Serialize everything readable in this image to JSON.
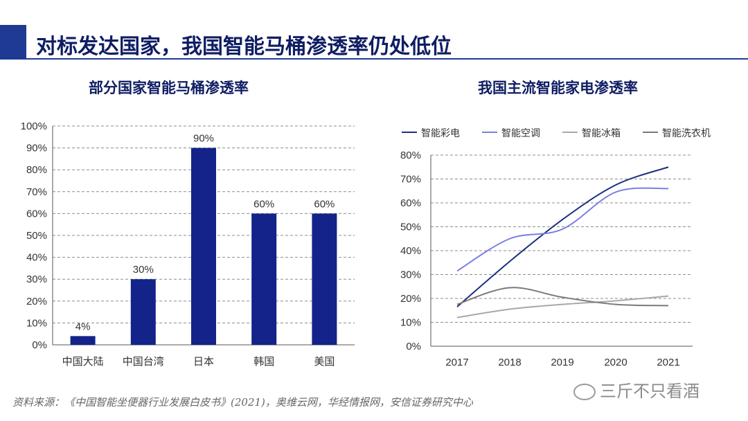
{
  "page": {
    "title": "对标发达国家，我国智能马桶渗透率仍处低位",
    "source": "资料来源：《中国智能坐便器行业发展白皮书》(2021)，奥维云网，华经情报网，安信证券研究中心",
    "watermark": "三斤不只看酒",
    "accent_color": "#1f3a93"
  },
  "chart_data": [
    {
      "type": "bar",
      "title": "部分国家智能马桶渗透率",
      "categories": [
        "中国大陆",
        "中国台湾",
        "日本",
        "韩国",
        "美国"
      ],
      "values": [
        4,
        30,
        90,
        60,
        60
      ],
      "data_labels": [
        "4%",
        "30%",
        "90%",
        "60%",
        "60%"
      ],
      "ylim": [
        0,
        100
      ],
      "yticks": [
        "0%",
        "10%",
        "20%",
        "30%",
        "40%",
        "50%",
        "60%",
        "70%",
        "80%",
        "90%",
        "100%"
      ],
      "grid": true,
      "color": "#13238a"
    },
    {
      "type": "line",
      "title": "我国主流智能家电渗透率",
      "x": [
        "2017",
        "2018",
        "2019",
        "2020",
        "2021"
      ],
      "ylim": [
        0,
        80
      ],
      "yticks": [
        "0%",
        "10%",
        "20%",
        "30%",
        "40%",
        "50%",
        "60%",
        "70%",
        "80%"
      ],
      "grid": true,
      "legend_position": "top",
      "series": [
        {
          "name": "智能彩电",
          "values": [
            16.5,
            35.5,
            53,
            67.5,
            75
          ],
          "color": "#1c2f7e"
        },
        {
          "name": "智能空调",
          "values": [
            31.5,
            45,
            49,
            64.5,
            66
          ],
          "color": "#7b7fe0"
        },
        {
          "name": "智能冰箱",
          "values": [
            12,
            15.5,
            17.5,
            19,
            21
          ],
          "color": "#a8a8a8"
        },
        {
          "name": "智能洗衣机",
          "values": [
            17.5,
            24.5,
            20.5,
            17.5,
            17
          ],
          "color": "#7a7a7a"
        }
      ]
    }
  ]
}
